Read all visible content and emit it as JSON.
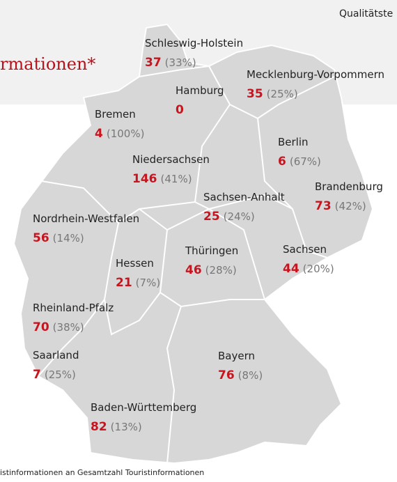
{
  "header": {
    "title": "rmationen*",
    "corner": "Qualitätste"
  },
  "states": [
    {
      "name": "Schleswig-Holstein",
      "count": 37,
      "share": "(33%)"
    },
    {
      "name": "Hamburg",
      "count": 0
    },
    {
      "name": "Mecklenburg-Vorpommern",
      "count": 35,
      "share": "(25%)"
    },
    {
      "name": "Bremen",
      "count": 4,
      "share": "(100%)"
    },
    {
      "name": "Berlin",
      "count": 6,
      "share": "(67%)"
    },
    {
      "name": "Niedersachsen",
      "count": 146,
      "share": "(41%)"
    },
    {
      "name": "Brandenburg",
      "count": 73,
      "share": "(42%)"
    },
    {
      "name": "Sachsen-Anhalt",
      "count": 25,
      "share": "(24%)"
    },
    {
      "name": "Nordrhein-Westfalen",
      "count": 56,
      "share": "(14%)"
    },
    {
      "name": "Thüringen",
      "count": 46,
      "share": "(28%)"
    },
    {
      "name": "Sachsen",
      "count": 44,
      "share": "(20%)"
    },
    {
      "name": "Hessen",
      "count": 21,
      "share": "(7%)"
    },
    {
      "name": "Rheinland-Pfalz",
      "count": 70,
      "share": "(38%)"
    },
    {
      "name": "Saarland",
      "count": 7,
      "share": "(25%)"
    },
    {
      "name": "Bayern",
      "count": 76,
      "share": "(8%)"
    },
    {
      "name": "Baden-Württemberg",
      "count": 82,
      "share": "(13%)"
    }
  ],
  "footnote": "istinformationen an Gesamtzahl Touristinformationen"
}
